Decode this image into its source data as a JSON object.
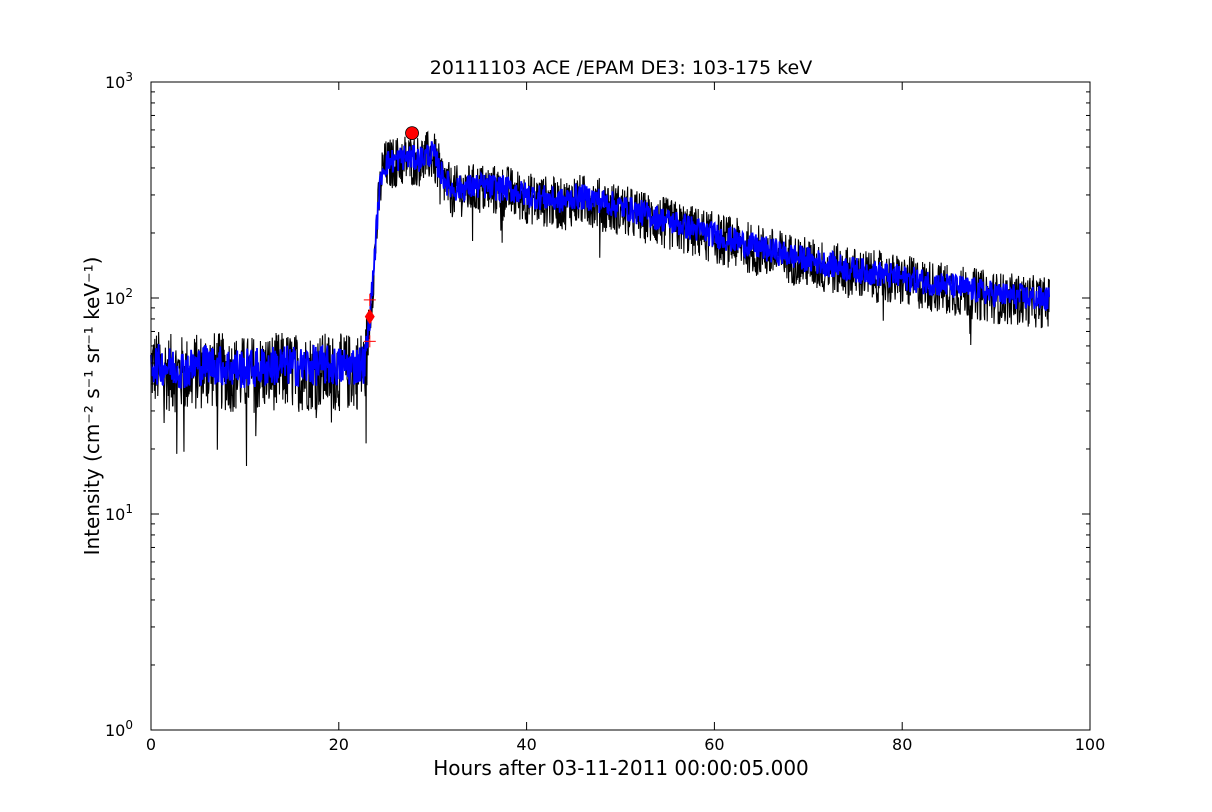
{
  "chart_data": {
    "type": "line",
    "title": "20111103 ACE /EPAM DE3: 103-175 keV",
    "xlabel": "Hours after 03-11-2011 00:00:05.000",
    "ylabel": "Intensity (cm⁻² s⁻¹ sr⁻¹ keV⁻¹)",
    "xlim": [
      0,
      100
    ],
    "ylim": [
      1,
      1000
    ],
    "yscale": "log",
    "grid": false,
    "x_tick_labels": [
      "0",
      "20",
      "40",
      "60",
      "80",
      "100"
    ],
    "y_tick_labels": [
      {
        "base": "10",
        "exp": "0"
      },
      {
        "base": "10",
        "exp": "1"
      },
      {
        "base": "10",
        "exp": "2"
      },
      {
        "base": "10",
        "exp": "3"
      }
    ],
    "colors": {
      "raw": "#000000",
      "smoothed": "#0000ff",
      "markers": "#ff0000"
    },
    "series": [
      {
        "style": "black noisy line",
        "x": [
          0,
          2,
          4,
          6,
          8,
          10,
          12,
          14,
          16,
          18,
          20,
          22,
          22.8,
          23.3,
          23.7,
          24.2,
          24.6,
          25,
          27,
          28.5,
          30,
          31,
          32,
          35,
          38,
          40,
          42,
          44,
          45,
          47,
          50,
          55,
          60,
          65,
          70,
          75,
          80,
          85,
          90,
          95.7
        ],
        "values": [
          48,
          45,
          44,
          47,
          45,
          44,
          45,
          46,
          45,
          46,
          45,
          46,
          48,
          80,
          130,
          260,
          380,
          410,
          440,
          430,
          460,
          360,
          310,
          320,
          310,
          290,
          280,
          270,
          285,
          280,
          255,
          220,
          190,
          165,
          145,
          130,
          120,
          110,
          100,
          95
        ]
      },
      {
        "style": "blue smoothed line",
        "x": [
          0,
          2,
          4,
          6,
          8,
          10,
          12,
          14,
          16,
          18,
          20,
          22,
          22.8,
          23.3,
          23.7,
          24.2,
          24.6,
          25,
          27,
          28.5,
          30,
          31,
          32,
          35,
          38,
          40,
          42,
          44,
          45,
          47,
          50,
          55,
          60,
          65,
          70,
          75,
          80,
          85,
          90,
          95.7
        ],
        "values": [
          50,
          48,
          47,
          50,
          48,
          47,
          48,
          49,
          48,
          49,
          48,
          49,
          50,
          82,
          135,
          270,
          390,
          420,
          450,
          440,
          470,
          370,
          320,
          330,
          320,
          300,
          290,
          280,
          295,
          290,
          265,
          228,
          196,
          170,
          150,
          135,
          124,
          114,
          104,
          98
        ]
      }
    ],
    "markers": [
      {
        "type": "circle",
        "x": 27.8,
        "y": 580
      },
      {
        "type": "diamond",
        "x": 23.3,
        "y": 82
      },
      {
        "type": "plus",
        "x": 23.3,
        "y": 98
      },
      {
        "type": "plus",
        "x": 23.3,
        "y": 63
      }
    ]
  }
}
